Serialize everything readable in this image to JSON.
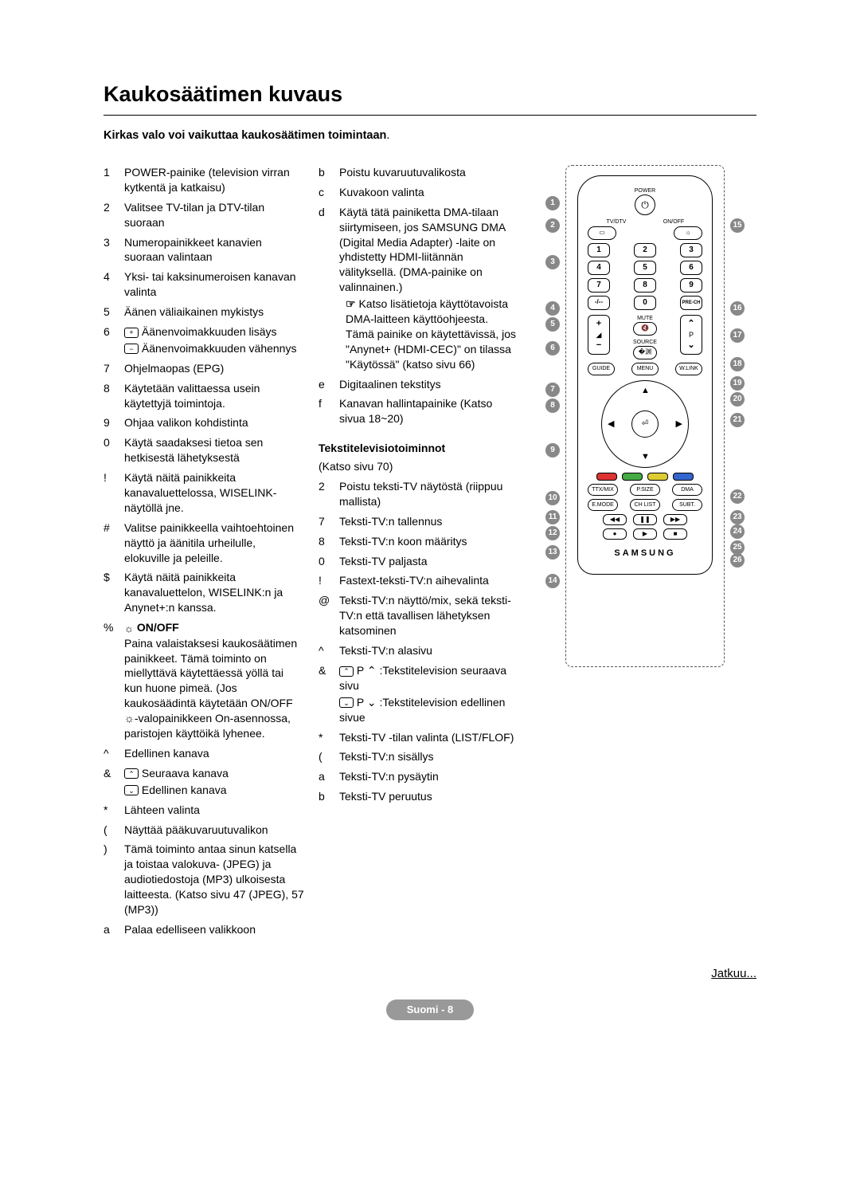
{
  "title": "Kaukosäätimen kuvaus",
  "subtitle_prefix": "Kirkas valo voi vaikuttaa kaukosäätimen toimintaan",
  "subtitle_suffix": ".",
  "col1": [
    {
      "n": "1",
      "t": "POWER-painike (television virran kytkentä ja katkaisu)"
    },
    {
      "n": "2",
      "t": "Valitsee TV-tilan ja DTV-tilan suoraan"
    },
    {
      "n": "3",
      "t": "Numeropainikkeet kanavien suoraan valintaan"
    },
    {
      "n": "4",
      "t": "Yksi- tai kaksinumeroisen kanavan valinta"
    },
    {
      "n": "5",
      "t": "Äänen väliaikainen mykistys"
    },
    {
      "n": "6",
      "t": "",
      "plus": "Äänenvoimakkuuden lisäys",
      "minus": "Äänenvoimakkuuden vähennys"
    },
    {
      "n": "7",
      "t": "Ohjelmaopas (EPG)"
    },
    {
      "n": "8",
      "t": "Käytetään valittaessa usein käytettyjä toimintoja."
    },
    {
      "n": "9",
      "t": "Ohjaa valikon kohdistinta"
    },
    {
      "n": "0",
      "t": "Käytä saadaksesi tietoa sen hetkisestä lähetyksestä"
    },
    {
      "n": "!",
      "t": "Käytä näitä painikkeita kanavaluettelossa, WISELINK-näytöllä jne."
    },
    {
      "n": "#",
      "t": "Valitse painikkeella vaihtoehtoinen näyttö ja äänitila urheilulle, elokuville ja peleille."
    },
    {
      "n": "$",
      "t": "Käytä näitä painikkeita kanavaluettelon, WISELINK:n ja Anynet+:n kanssa."
    }
  ],
  "onoff_label": "ON/OFF",
  "onoff_num": "%",
  "onoff_text": "Paina valaistaksesi kaukosäätimen painikkeet. Tämä toiminto on miellyttävä käytettäessä yöllä tai kun huone pimeä. (Jos kaukosäädintä käytetään ON/OFF ☼-valopainikkeen On-asennossa, paristojen käyttöikä lyhenee.",
  "col1_tail": [
    {
      "n": "^",
      "t": "Edellinen kanava"
    },
    {
      "n": "&",
      "t": "",
      "up": "Seuraava kanava",
      "down": "Edellinen kanava"
    },
    {
      "n": "*",
      "t": "Lähteen valinta"
    },
    {
      "n": "(",
      "t": "Näyttää pääkuvaruutuvalikon"
    },
    {
      "n": ")",
      "t": "Tämä toiminto antaa sinun katsella ja toistaa valokuva- (JPEG) ja audiotiedostoja (MP3) ulkoisesta laitteesta. (Katso sivu 47 (JPEG), 57 (MP3))"
    },
    {
      "n": "a",
      "t": "Palaa edelliseen valikkoon"
    }
  ],
  "col2_top": [
    {
      "n": "b",
      "t": "Poistu kuvaruutuvalikosta"
    },
    {
      "n": "c",
      "t": "Kuvakoon valinta"
    },
    {
      "n": "d",
      "t": "Käytä tätä painiketta DMA-tilaan siirtymiseen, jos SAMSUNG DMA (Digital Media Adapter) -laite on yhdistetty HDMI-liitännän välityksellä. (DMA-painike on valinnainen.)",
      "t2": "Katso lisätietoja käyttötavoista DMA-laitteen käyttöohjeesta. Tämä painike on käytettävissä, jos \"Anynet+ (HDMI-CEC)\" on tilassa \"Käytössä\" (katso sivu 66)"
    },
    {
      "n": "e",
      "t": "Digitaalinen tekstitys"
    },
    {
      "n": "f",
      "t": "Kanavan hallintapainike (Katso sivua 18~20)"
    }
  ],
  "ttx_head": "Tekstitelevisiotoiminnot",
  "ttx_sub": "(Katso sivu 70)",
  "ttx": [
    {
      "n": "2",
      "t": "Poistu teksti-TV näytöstä (riippuu mallista)"
    },
    {
      "n": "7",
      "t": "Teksti-TV:n tallennus"
    },
    {
      "n": "8",
      "t": "Teksti-TV:n koon määritys"
    },
    {
      "n": "0",
      "t": "Teksti-TV paljasta"
    },
    {
      "n": "!",
      "t": "Fastext-teksti-TV:n aihevalinta"
    },
    {
      "n": "@",
      "t": "Teksti-TV:n näyttö/mix, sekä teksti-TV:n että tavallisen lähetyksen katsominen"
    },
    {
      "n": "^",
      "t": "Teksti-TV:n alasivu"
    },
    {
      "n": "&",
      "t": "",
      "up": "P ⌃ :Tekstitelevision seuraava sivu",
      "down": "P ⌄ :Tekstitelevision edellinen sivue"
    },
    {
      "n": "*",
      "t": "Teksti-TV -tilan valinta (LIST/FLOF)"
    },
    {
      "n": "(",
      "t": "Teksti-TV:n sisällys"
    },
    {
      "n": "a",
      "t": "Teksti-TV:n pysäytin"
    },
    {
      "n": "b",
      "t": "Teksti-TV peruutus"
    }
  ],
  "remote": {
    "power_label": "POWER",
    "tvdtv": "TV/DTV",
    "onoff": "ON/OFF",
    "pre_ch": "PRE-CH",
    "mute": "MUTE",
    "source": "SOURCE",
    "guide": "GUIDE",
    "menu": "MENU",
    "wlink": "W.LINK",
    "ttxmix": "TTX/MIX",
    "psize": "P.SIZE",
    "dma": "DMA",
    "emode": "E.MODE",
    "chlist": "CH LIST",
    "subt": "SUBT.",
    "brand": "SAMSUNG",
    "colors": [
      "#d33",
      "#4a4",
      "#dc3",
      "#36c"
    ]
  },
  "jatkuu": "Jatkuu...",
  "footer": "Suomi - 8"
}
